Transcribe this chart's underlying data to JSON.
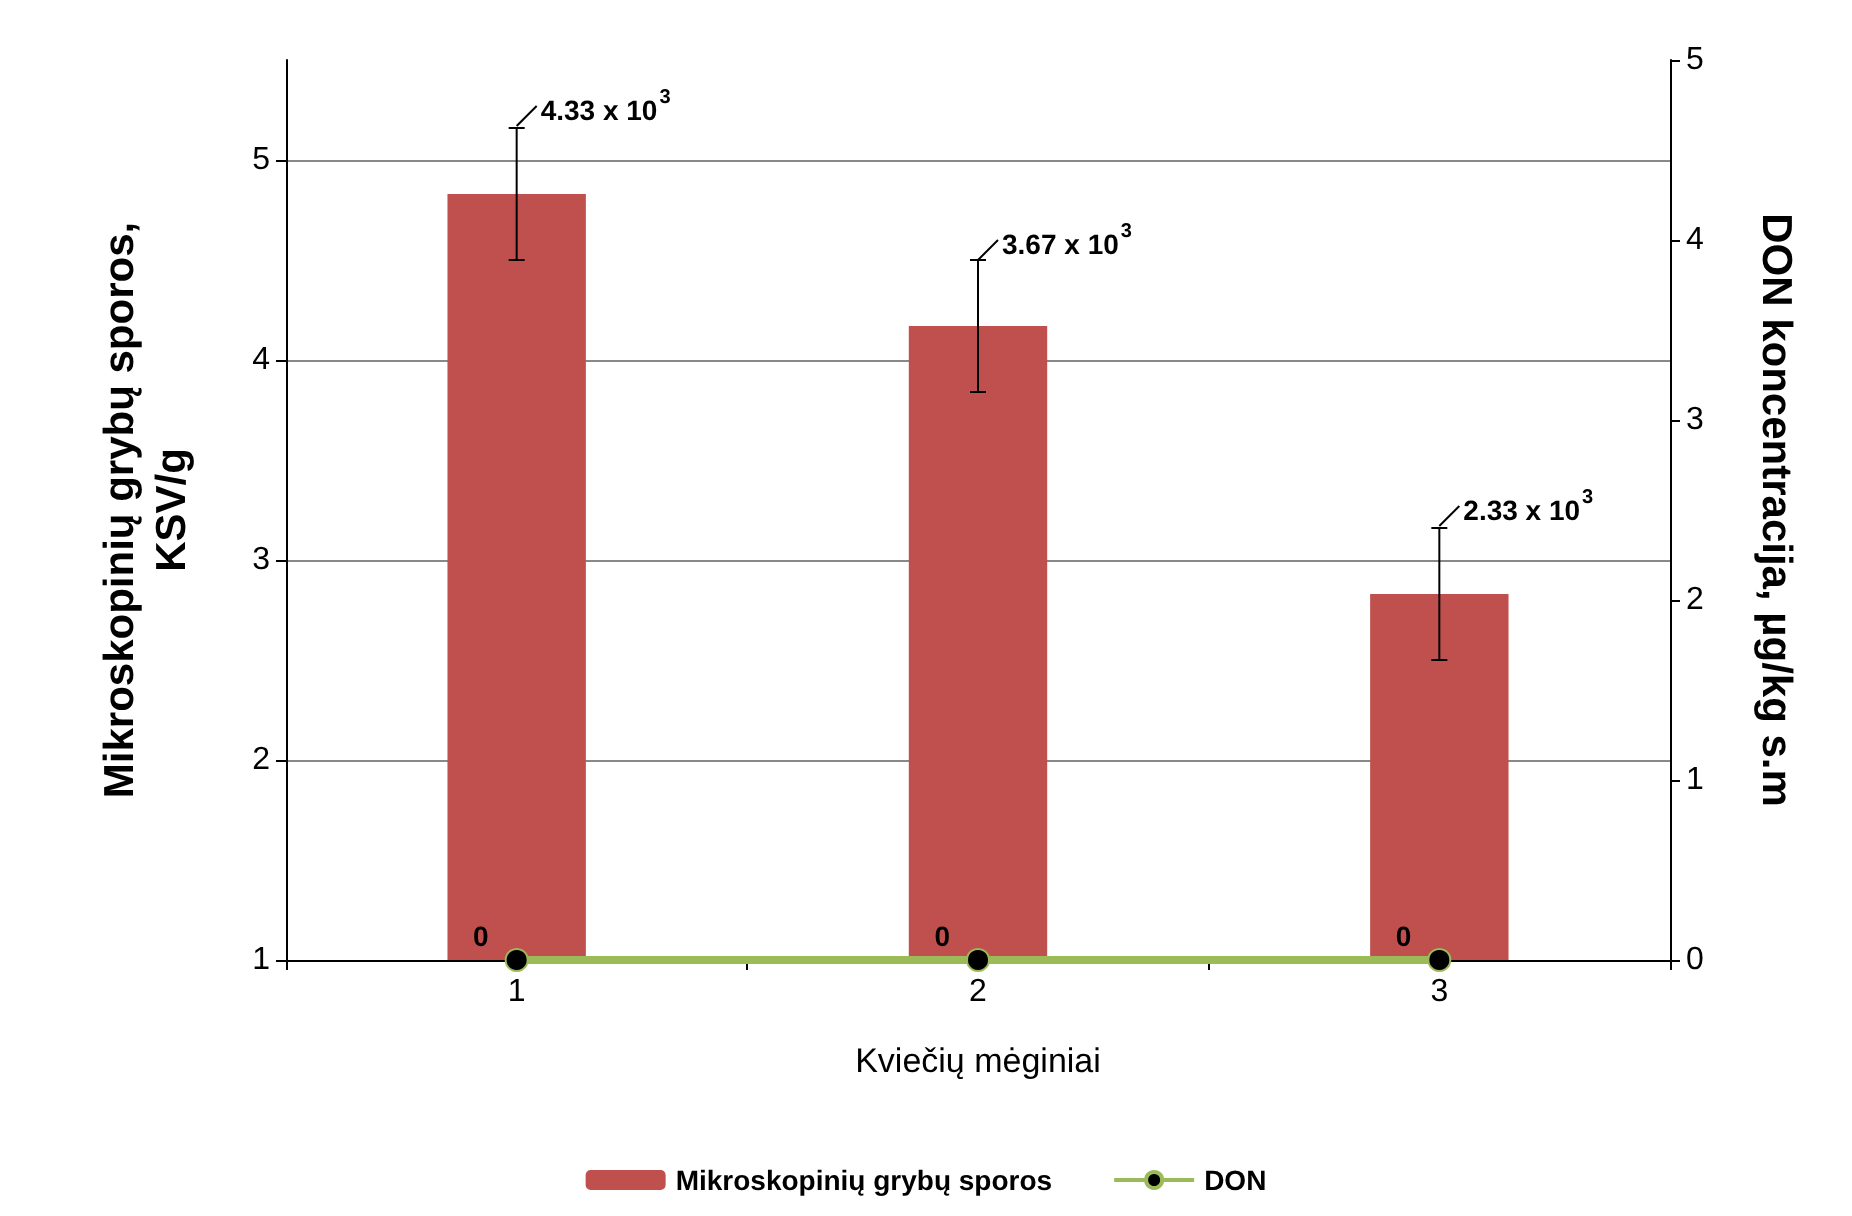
{
  "chart_data": {
    "type": "bar",
    "xlabel": "Kviečių mėginiai",
    "ylabel": "Mikroskopinių grybų sporos, KSV/g",
    "y2label": "DON koncentracija, µg/kg s.m",
    "categories": [
      "1",
      "2",
      "3"
    ],
    "series": [
      {
        "name": "Mikroskopinių grybų sporos",
        "color": "#c0504d",
        "values": [
          4.83,
          4.17,
          2.83
        ],
        "errors": [
          0.33,
          0.33,
          0.33
        ]
      },
      {
        "name": "DON",
        "type": "line",
        "axis": "y2",
        "color": "#9bbb59",
        "marker": "circle",
        "values": [
          0,
          0,
          0
        ],
        "value_labels": [
          "0",
          "0",
          "0"
        ]
      }
    ],
    "ylim": [
      1,
      5.5
    ],
    "yticks": [
      1,
      2,
      3,
      4,
      5
    ],
    "y2lim": [
      0,
      5
    ],
    "y2ticks": [
      0,
      1,
      2,
      3,
      4,
      5
    ],
    "grid": "y",
    "legend": "bottom",
    "annotations": [
      {
        "text": "4.33 x 10$^{3}$",
        "x": "1",
        "y": 5.17
      },
      {
        "text": "3.67 x 10$^{3}$",
        "x": "2",
        "y": 4.5
      },
      {
        "text": "2.33 x 10$^{3}$",
        "x": "3",
        "y": 3.17
      }
    ]
  }
}
